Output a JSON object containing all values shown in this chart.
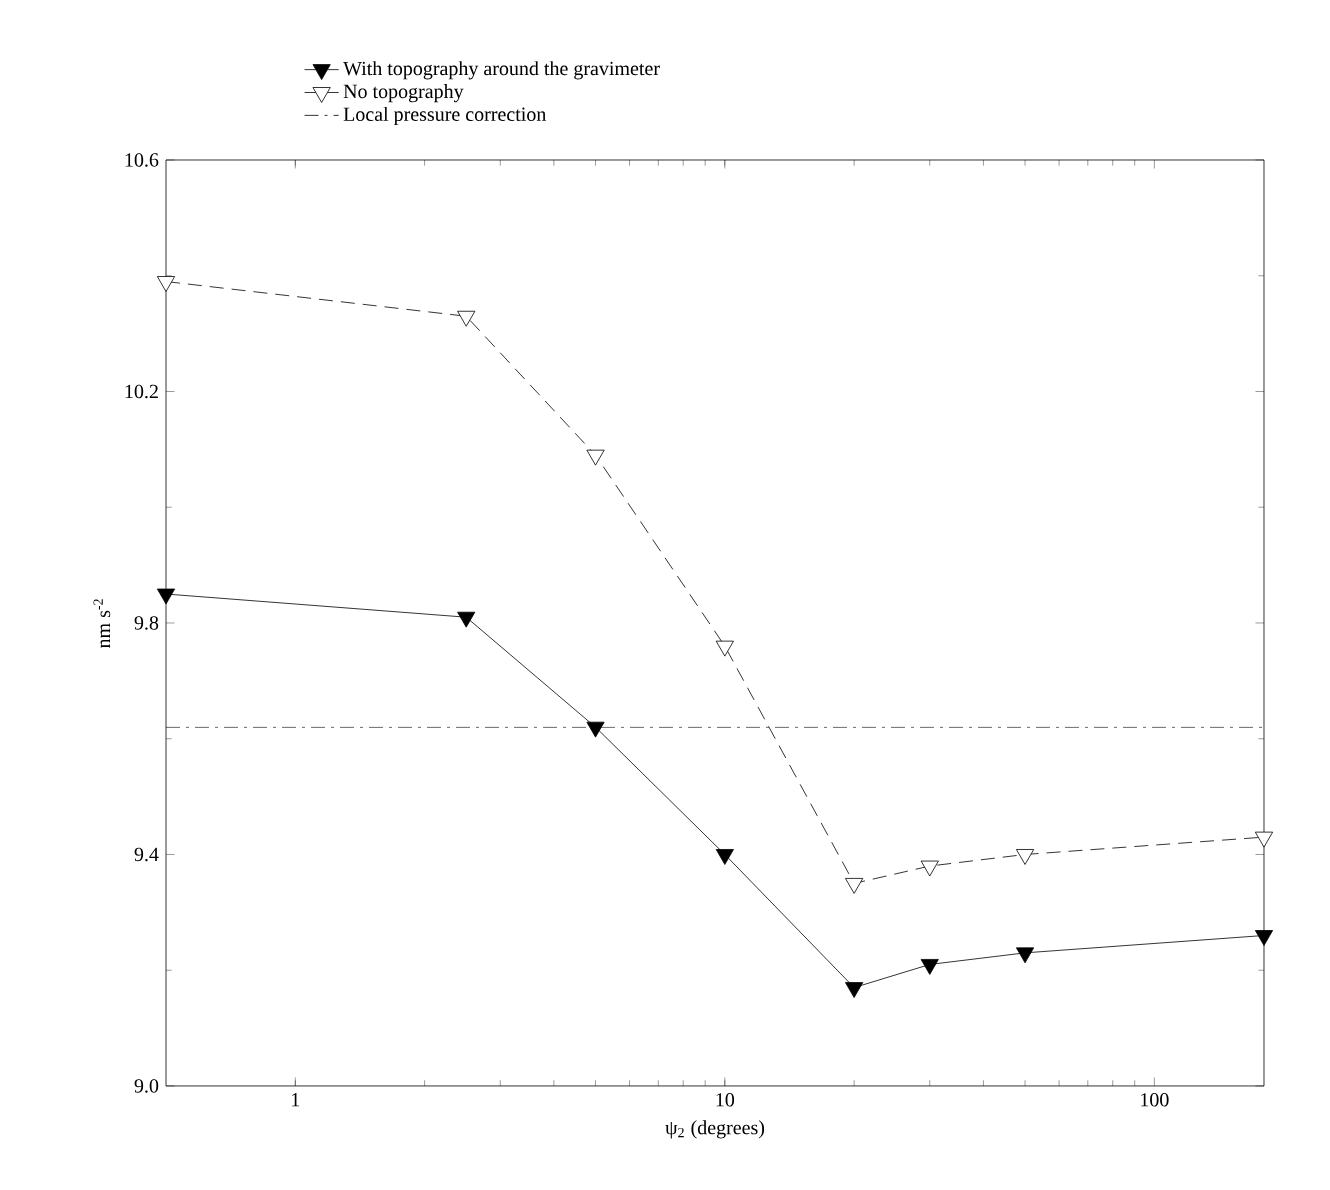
{
  "chart_data": {
    "type": "line",
    "xlabel": "ψ$_{2}$ (degrees)",
    "ylabel": "nm s$^{-2}$",
    "log": "x",
    "x": [
      0.5,
      2.5,
      5,
      10,
      20,
      30,
      50,
      180
    ],
    "series": [
      {
        "name": "With topography around the gravimeter",
        "color": "#000000",
        "marker": "triangle",
        "line_style": "solid",
        "values": [
          9.85,
          9.81,
          9.62,
          9.4,
          9.17,
          9.21,
          9.23,
          9.26
        ]
      },
      {
        "name": "No topography",
        "color": "#000000",
        "marker": "triangle",
        "line_style": "dashed",
        "values": [
          10.39,
          10.33,
          10.09,
          9.76,
          9.35,
          9.38,
          9.4,
          9.43
        ]
      }
    ],
    "ref_lines": [
      {
        "axis": "y",
        "value": 9.62,
        "label": "Local pressure correction",
        "line_style": "dashdot",
        "color": "#000000"
      }
    ],
    "xlim": [
      0.5,
      180
    ],
    "xticks": [
      1,
      10,
      100
    ],
    "ylim": [
      9.0,
      10.6
    ],
    "yticks": [
      {
        "value": 9.0,
        "label": "9.0"
      },
      9.4,
      9.8,
      10.2,
      10.6
    ],
    "legend": "top",
    "grid": false
  }
}
